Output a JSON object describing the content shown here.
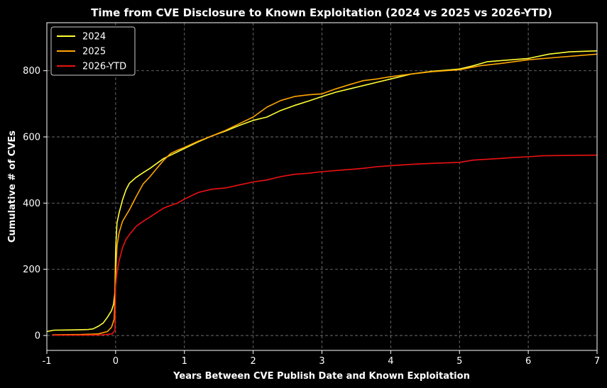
{
  "chart_data": {
    "type": "line",
    "title": "Time from CVE Disclosure to Known Exploitation (2024 vs 2025 vs 2026-YTD)",
    "xlabel": "Years Between CVE Publish Date and Known Exploitation",
    "ylabel": "Cumulative # of CVEs",
    "xlim": [
      -1,
      7
    ],
    "ylim": [
      -45,
      945
    ],
    "xticks": [
      -1,
      0,
      1,
      2,
      3,
      4,
      5,
      6,
      7
    ],
    "xtick_labels": [
      "-1",
      "0",
      "1",
      "2",
      "3",
      "4",
      "5",
      "6",
      "7"
    ],
    "yticks": [
      0,
      200,
      400,
      600,
      800
    ],
    "ytick_labels": [
      "0",
      "200",
      "400",
      "600",
      "800"
    ],
    "grid": true,
    "legend_position": "top-left",
    "background": "#000000",
    "series": [
      {
        "name": "2024",
        "color": "#ffff33",
        "points": [
          [
            -1,
            12
          ],
          [
            -0.9,
            16
          ],
          [
            -0.6,
            17
          ],
          [
            -0.4,
            18
          ],
          [
            -0.33,
            20
          ],
          [
            -0.25,
            28
          ],
          [
            -0.18,
            38
          ],
          [
            -0.12,
            55
          ],
          [
            -0.06,
            75
          ],
          [
            -0.03,
            95
          ],
          [
            -0.01,
            130
          ],
          [
            0,
            260
          ],
          [
            0.02,
            340
          ],
          [
            0.05,
            370
          ],
          [
            0.1,
            410
          ],
          [
            0.15,
            440
          ],
          [
            0.2,
            460
          ],
          [
            0.3,
            478
          ],
          [
            0.4,
            492
          ],
          [
            0.5,
            505
          ],
          [
            0.6,
            520
          ],
          [
            0.7,
            535
          ],
          [
            0.8,
            545
          ],
          [
            0.9,
            555
          ],
          [
            1.0,
            565
          ],
          [
            1.2,
            585
          ],
          [
            1.4,
            603
          ],
          [
            1.6,
            618
          ],
          [
            1.8,
            635
          ],
          [
            2.0,
            650
          ],
          [
            2.2,
            660
          ],
          [
            2.4,
            680
          ],
          [
            2.6,
            695
          ],
          [
            2.8,
            708
          ],
          [
            3.0,
            722
          ],
          [
            3.2,
            735
          ],
          [
            3.4,
            745
          ],
          [
            3.6,
            755
          ],
          [
            3.8,
            765
          ],
          [
            4.0,
            775
          ],
          [
            4.3,
            790
          ],
          [
            4.6,
            798
          ],
          [
            5.0,
            805
          ],
          [
            5.2,
            815
          ],
          [
            5.4,
            827
          ],
          [
            5.7,
            832
          ],
          [
            6.0,
            837
          ],
          [
            6.3,
            850
          ],
          [
            6.6,
            857
          ],
          [
            7.0,
            860
          ]
        ]
      },
      {
        "name": "2025",
        "color": "#ffa500",
        "points": [
          [
            -0.92,
            2
          ],
          [
            -0.5,
            3
          ],
          [
            -0.25,
            5
          ],
          [
            -0.12,
            12
          ],
          [
            -0.06,
            25
          ],
          [
            -0.02,
            50
          ],
          [
            0,
            180
          ],
          [
            0.02,
            270
          ],
          [
            0.05,
            310
          ],
          [
            0.1,
            345
          ],
          [
            0.2,
            380
          ],
          [
            0.3,
            420
          ],
          [
            0.4,
            458
          ],
          [
            0.5,
            480
          ],
          [
            0.6,
            505
          ],
          [
            0.7,
            530
          ],
          [
            0.8,
            550
          ],
          [
            0.9,
            560
          ],
          [
            1.0,
            568
          ],
          [
            1.2,
            587
          ],
          [
            1.4,
            603
          ],
          [
            1.6,
            620
          ],
          [
            1.8,
            640
          ],
          [
            2.0,
            660
          ],
          [
            2.2,
            690
          ],
          [
            2.4,
            710
          ],
          [
            2.6,
            722
          ],
          [
            2.8,
            727
          ],
          [
            3.0,
            730
          ],
          [
            3.2,
            745
          ],
          [
            3.4,
            758
          ],
          [
            3.6,
            770
          ],
          [
            3.8,
            775
          ],
          [
            4.0,
            782
          ],
          [
            4.3,
            790
          ],
          [
            4.6,
            797
          ],
          [
            5.0,
            803
          ],
          [
            5.3,
            815
          ],
          [
            5.6,
            822
          ],
          [
            6.0,
            833
          ],
          [
            6.4,
            840
          ],
          [
            7.0,
            850
          ]
        ]
      },
      {
        "name": "2026-YTD",
        "color": "#ee1111",
        "points": [
          [
            -0.92,
            1
          ],
          [
            -0.5,
            1
          ],
          [
            -0.2,
            2
          ],
          [
            -0.05,
            5
          ],
          [
            -0.01,
            15
          ],
          [
            0,
            150
          ],
          [
            0.02,
            190
          ],
          [
            0.05,
            225
          ],
          [
            0.1,
            265
          ],
          [
            0.15,
            290
          ],
          [
            0.2,
            305
          ],
          [
            0.3,
            330
          ],
          [
            0.4,
            345
          ],
          [
            0.5,
            358
          ],
          [
            0.6,
            372
          ],
          [
            0.7,
            385
          ],
          [
            0.8,
            393
          ],
          [
            0.9,
            400
          ],
          [
            1.0,
            412
          ],
          [
            1.2,
            432
          ],
          [
            1.4,
            442
          ],
          [
            1.6,
            446
          ],
          [
            1.8,
            455
          ],
          [
            2.0,
            464
          ],
          [
            2.2,
            470
          ],
          [
            2.4,
            480
          ],
          [
            2.6,
            487
          ],
          [
            2.8,
            490
          ],
          [
            3.0,
            495
          ],
          [
            3.3,
            500
          ],
          [
            3.6,
            505
          ],
          [
            3.8,
            510
          ],
          [
            4.0,
            513
          ],
          [
            4.3,
            517
          ],
          [
            4.6,
            520
          ],
          [
            5.0,
            523
          ],
          [
            5.2,
            530
          ],
          [
            5.6,
            535
          ],
          [
            5.8,
            538
          ],
          [
            6.0,
            540
          ],
          [
            6.2,
            543
          ],
          [
            7.0,
            545
          ]
        ]
      }
    ]
  }
}
